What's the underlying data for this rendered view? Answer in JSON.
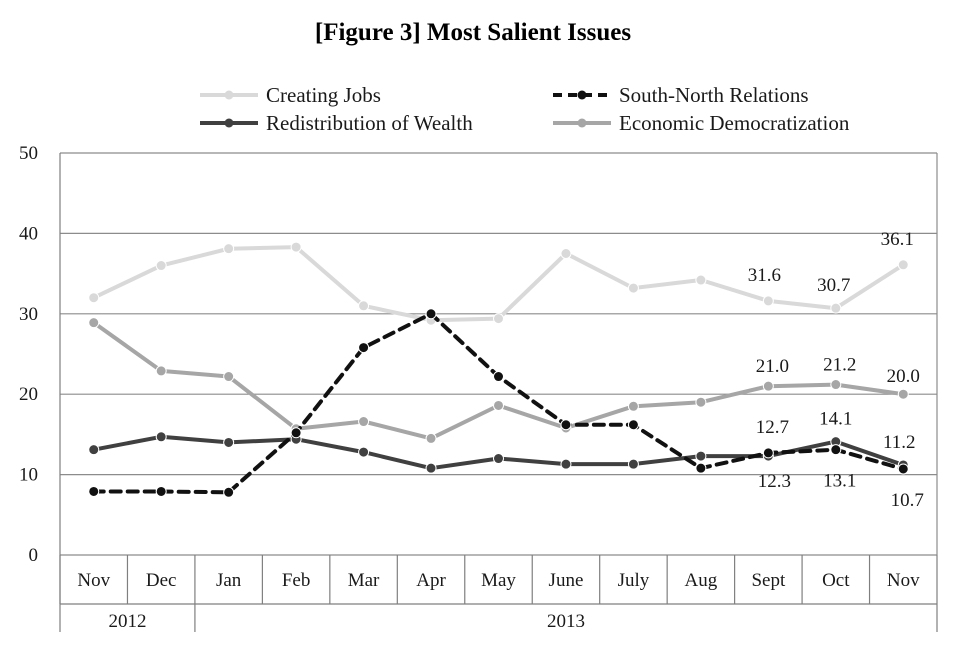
{
  "chart_data": {
    "type": "line",
    "title": "[Figure 3] Most Salient Issues",
    "ylim": [
      0,
      50
    ],
    "yticks": [
      0,
      10,
      20,
      30,
      40,
      50
    ],
    "grid": true,
    "legend_position": "top",
    "categories": [
      "Nov",
      "Dec",
      "Jan",
      "Feb",
      "Mar",
      "Apr",
      "May",
      "June",
      "July",
      "Aug",
      "Sept",
      "Oct",
      "Nov"
    ],
    "year_groups": [
      {
        "label": "2012",
        "span": 2
      },
      {
        "label": "2013",
        "span": 11
      }
    ],
    "series": [
      {
        "name": "Creating Jobs",
        "color": "#d9d9d9",
        "dash": "solid",
        "values": [
          32.0,
          36.0,
          38.1,
          38.3,
          31.0,
          29.2,
          29.4,
          37.5,
          33.2,
          34.2,
          31.6,
          30.7,
          36.1
        ],
        "labels": [
          null,
          null,
          null,
          null,
          null,
          null,
          null,
          null,
          null,
          null,
          "31.6",
          "30.7",
          "36.1"
        ]
      },
      {
        "name": "South-North Relations",
        "color": "#111111",
        "dash": "dashed",
        "values": [
          7.9,
          7.9,
          7.8,
          15.2,
          25.8,
          30.0,
          22.2,
          16.2,
          16.2,
          10.8,
          12.7,
          13.1,
          10.7
        ],
        "labels": [
          null,
          null,
          null,
          null,
          null,
          null,
          null,
          null,
          null,
          null,
          "12.7",
          "13.1",
          "10.7"
        ]
      },
      {
        "name": "Redistribution of Wealth",
        "color": "#404040",
        "dash": "solid",
        "values": [
          13.1,
          14.7,
          14.0,
          14.4,
          12.8,
          10.8,
          12.0,
          11.3,
          11.3,
          12.3,
          12.3,
          14.1,
          11.2
        ],
        "labels": [
          null,
          null,
          null,
          null,
          null,
          null,
          null,
          null,
          null,
          null,
          "12.3",
          "14.1",
          "11.2"
        ]
      },
      {
        "name": "Economic Democratization",
        "color": "#a6a6a6",
        "dash": "solid",
        "values": [
          28.9,
          22.9,
          22.2,
          15.7,
          16.6,
          14.5,
          18.6,
          15.8,
          18.5,
          19.0,
          21.0,
          21.2,
          20.0
        ],
        "labels": [
          null,
          null,
          null,
          null,
          null,
          null,
          null,
          null,
          null,
          null,
          "21.0",
          "21.2",
          "20.0"
        ]
      }
    ]
  }
}
